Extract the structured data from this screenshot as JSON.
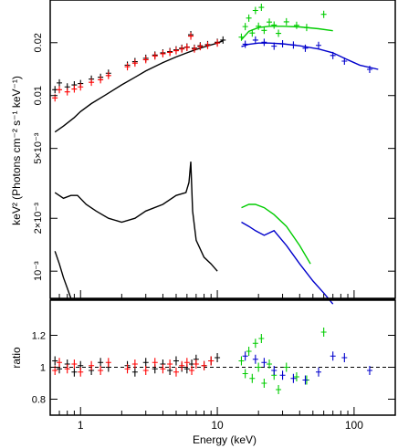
{
  "chart_data": [
    {
      "type": "line",
      "panel": "spectrum",
      "xlabel": "Energy (keV)",
      "ylabel": "keV² (Photons cm⁻² s⁻¹ keV⁻¹)",
      "x_scale": "log",
      "y_scale": "log",
      "xlim": [
        0.6,
        200
      ],
      "ylim": [
        0.0007,
        0.035
      ],
      "x_ticks": [
        1,
        10,
        100
      ],
      "x_tick_labels": [
        "1",
        "10",
        "100"
      ],
      "y_ticks": [
        0.001,
        0.002,
        0.005,
        0.01,
        0.02
      ],
      "y_tick_labels": [
        "10⁻³",
        "2×10⁻³",
        "5×10⁻³",
        "0.01",
        "0.02"
      ],
      "series": [
        {
          "color": "#000000",
          "kind": "data",
          "x": [
            0.65,
            0.7,
            0.8,
            0.9,
            1.0,
            1.2,
            1.4,
            1.6,
            2.2,
            2.5,
            3.0,
            3.5,
            4.0,
            4.5,
            5.0,
            5.5,
            6.0,
            6.4,
            6.8,
            7.5,
            8.5,
            10.0,
            11.0
          ],
          "y": [
            0.0108,
            0.0118,
            0.0112,
            0.0115,
            0.0117,
            0.0124,
            0.0127,
            0.0134,
            0.0149,
            0.0156,
            0.0163,
            0.017,
            0.0175,
            0.0178,
            0.0182,
            0.0186,
            0.0189,
            0.0222,
            0.0186,
            0.0192,
            0.0195,
            0.0201,
            0.0207
          ]
        },
        {
          "color": "#ff0000",
          "kind": "data",
          "x": [
            0.65,
            0.7,
            0.8,
            0.9,
            1.0,
            1.2,
            1.4,
            1.6,
            2.2,
            2.5,
            3.0,
            3.5,
            4.0,
            4.5,
            5.0,
            5.5,
            6.0,
            6.4,
            6.8,
            7.5,
            8.5,
            10.0
          ],
          "y": [
            0.0097,
            0.0108,
            0.0105,
            0.0109,
            0.0112,
            0.0119,
            0.0123,
            0.013,
            0.0146,
            0.0153,
            0.016,
            0.0168,
            0.0173,
            0.0176,
            0.018,
            0.0184,
            0.0188,
            0.0218,
            0.0184,
            0.019,
            0.0193,
            0.0199
          ]
        },
        {
          "color": "#00cc00",
          "kind": "data",
          "x": [
            15,
            16,
            17,
            18,
            19,
            20,
            21,
            22,
            24,
            26,
            28,
            32,
            38,
            45,
            60
          ],
          "y": [
            0.0215,
            0.0247,
            0.0276,
            0.0227,
            0.0305,
            0.0248,
            0.0318,
            0.0235,
            0.0262,
            0.0252,
            0.0226,
            0.0263,
            0.0251,
            0.0244,
            0.029
          ]
        },
        {
          "color": "#0000cc",
          "kind": "data",
          "x": [
            16,
            19,
            22,
            26,
            30,
            36,
            44,
            55,
            70,
            85,
            130
          ],
          "y": [
            0.0196,
            0.0207,
            0.0201,
            0.0191,
            0.0197,
            0.0194,
            0.0186,
            0.0193,
            0.0169,
            0.0157,
            0.0141
          ]
        },
        {
          "color": "#000000",
          "kind": "total-model",
          "x": [
            0.65,
            0.75,
            0.9,
            1.0,
            1.2,
            1.5,
            2.0,
            2.5,
            3.0,
            4.0,
            5.0,
            6.0,
            7.0,
            8.0,
            10.0,
            11.0
          ],
          "y": [
            0.0062,
            0.0067,
            0.0075,
            0.0081,
            0.009,
            0.01,
            0.0115,
            0.0127,
            0.0138,
            0.0154,
            0.0166,
            0.0175,
            0.0183,
            0.0189,
            0.0199,
            0.0205
          ]
        },
        {
          "color": "#00cc00",
          "kind": "model",
          "x": [
            15,
            17,
            20,
            24,
            30,
            40,
            55,
            70
          ],
          "y": [
            0.0208,
            0.0232,
            0.0244,
            0.0248,
            0.0248,
            0.0246,
            0.024,
            0.0234
          ]
        },
        {
          "color": "#0000cc",
          "kind": "model",
          "x": [
            15,
            17,
            20,
            24,
            30,
            40,
            55,
            70,
            85,
            110,
            150
          ],
          "y": [
            0.019,
            0.0196,
            0.0199,
            0.0199,
            0.0197,
            0.0192,
            0.0184,
            0.0175,
            0.0163,
            0.0149,
            0.0141
          ]
        },
        {
          "color": "#000000",
          "kind": "component",
          "x": [
            0.65,
            0.75,
            0.85,
            0.95,
            1.1,
            1.3,
            1.6,
            2.0,
            2.5,
            3.0,
            4.0,
            5.0,
            5.9,
            6.2,
            6.4,
            6.6,
            7.0,
            8.0,
            9.0,
            10.0
          ],
          "y": [
            0.0028,
            0.0026,
            0.0027,
            0.0027,
            0.0024,
            0.0022,
            0.002,
            0.0019,
            0.002,
            0.0022,
            0.0024,
            0.0027,
            0.0028,
            0.0032,
            0.0042,
            0.0022,
            0.0015,
            0.0012,
            0.0011,
            0.001
          ]
        },
        {
          "color": "#00cc00",
          "kind": "component",
          "x": [
            15,
            17,
            19,
            22,
            26,
            32,
            40,
            48
          ],
          "y": [
            0.0023,
            0.0024,
            0.0024,
            0.0023,
            0.0021,
            0.0018,
            0.0014,
            0.0011
          ]
        },
        {
          "color": "#0000cc",
          "kind": "component",
          "x": [
            15,
            17,
            19,
            22,
            26,
            32,
            40,
            50,
            60,
            70
          ],
          "y": [
            0.0019,
            0.0018,
            0.0017,
            0.0016,
            0.0017,
            0.0014,
            0.0011,
            0.00088,
            0.00075,
            0.00065
          ]
        },
        {
          "color": "#000000",
          "kind": "component",
          "x": [
            0.65,
            0.7,
            0.75,
            0.8,
            0.85
          ],
          "y": [
            0.0013,
            0.0011,
            0.00092,
            0.0008,
            0.0007
          ]
        }
      ]
    },
    {
      "type": "scatter",
      "panel": "ratio",
      "xlabel": "Energy (keV)",
      "ylabel": "ratio",
      "x_scale": "log",
      "xlim": [
        0.6,
        200
      ],
      "ylim": [
        0.7,
        1.42
      ],
      "x_ticks": [
        1,
        10,
        100
      ],
      "x_tick_labels": [
        "1",
        "10",
        "100"
      ],
      "y_ticks": [
        0.8,
        1,
        1.2
      ],
      "y_tick_labels": [
        "0.8",
        "1",
        "1.2"
      ],
      "reference_line": 1,
      "series": [
        {
          "color": "#000000",
          "x": [
            0.65,
            0.7,
            0.8,
            0.9,
            1.0,
            1.2,
            1.4,
            1.6,
            2.2,
            2.5,
            3.0,
            3.5,
            4.0,
            4.5,
            5.0,
            5.5,
            6.0,
            6.5,
            7.0,
            8.0,
            9.0,
            10.0
          ],
          "y": [
            1.04,
            0.99,
            1.02,
            0.97,
            1.01,
            0.98,
            1.03,
            1.0,
            1.01,
            0.97,
            1.03,
            0.99,
            1.02,
            0.98,
            1.04,
            1.0,
            0.99,
            1.02,
            1.05,
            1.01,
            1.04,
            1.06
          ]
        },
        {
          "color": "#ff0000",
          "x": [
            0.65,
            0.7,
            0.8,
            0.9,
            1.0,
            1.2,
            1.4,
            1.6,
            2.2,
            2.5,
            3.0,
            3.5,
            4.0,
            4.5,
            5.0,
            5.5,
            6.0,
            6.5,
            7.0,
            8.0,
            9.0
          ],
          "y": [
            0.98,
            1.03,
            0.99,
            1.02,
            0.97,
            1.01,
            0.98,
            1.03,
            0.99,
            1.02,
            0.98,
            1.03,
            0.99,
            1.02,
            0.97,
            1.01,
            1.03,
            0.98,
            1.02,
            1.01,
            1.04
          ]
        },
        {
          "color": "#00cc00",
          "x": [
            15,
            16,
            17,
            18,
            19,
            20,
            21,
            22,
            24,
            26,
            28,
            32,
            38,
            45,
            60
          ],
          "y": [
            1.04,
            0.96,
            1.1,
            0.93,
            1.15,
            1.0,
            1.18,
            0.9,
            1.02,
            0.95,
            0.86,
            1.0,
            0.94,
            0.92,
            1.22
          ]
        },
        {
          "color": "#0000cc",
          "x": [
            16,
            19,
            22,
            26,
            30,
            36,
            44,
            55,
            70,
            85,
            130
          ],
          "y": [
            1.07,
            1.05,
            1.03,
            0.98,
            0.95,
            0.93,
            0.92,
            0.97,
            1.07,
            1.06,
            0.98
          ]
        }
      ]
    }
  ]
}
